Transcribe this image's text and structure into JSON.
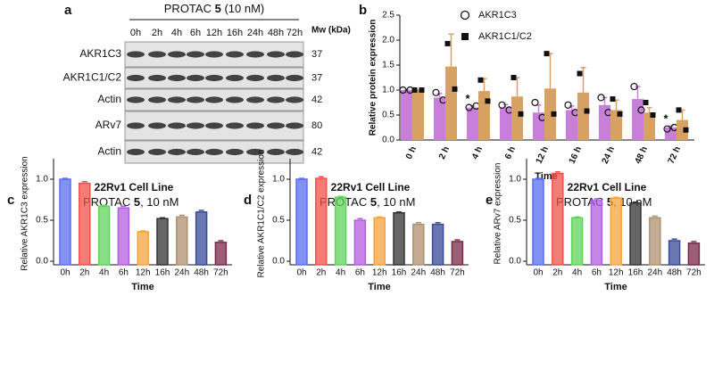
{
  "chart_data": [
    {
      "type": "blot",
      "panel": "a",
      "heading_parts": [
        "PROTAC ",
        "5",
        " (10 nM)"
      ],
      "columns": [
        "0h",
        "2h",
        "4h",
        "6h",
        "12h",
        "16h",
        "24h",
        "48h",
        "72h"
      ],
      "mw_title": "Mw (kDa)",
      "rows": [
        {
          "label": "AKR1C3",
          "mw": 37
        },
        {
          "label": "AKR1C1/C2",
          "mw": 37
        },
        {
          "label": "Actin",
          "mw": 42
        },
        {
          "label": "ARv7",
          "mw": 80
        },
        {
          "label": "Actin",
          "mw": 42
        }
      ]
    },
    {
      "type": "grouped-bar",
      "panel": "b",
      "categories": [
        "0 h",
        "2 h",
        "4 h",
        "6 h",
        "12 h",
        "16 h",
        "24 h",
        "48 h",
        "72 h"
      ],
      "ylabel": "Relative protein expression",
      "xlabel": "Time",
      "ylim": [
        0,
        2.5
      ],
      "yticks": [
        {
          "value": 0,
          "label": "0.0"
        },
        0.5,
        {
          "value": 1,
          "label": "1.0"
        },
        1.5,
        {
          "value": 2,
          "label": "2.0"
        },
        2.5
      ],
      "legend": "upper right",
      "series": [
        {
          "name": "AKR1C3",
          "color": "#c77fd9",
          "marker": "circle",
          "values": [
            1.0,
            0.85,
            0.65,
            0.65,
            0.55,
            0.6,
            0.7,
            0.82,
            0.25
          ],
          "errors": [
            0.0,
            0.08,
            0.03,
            0.06,
            0.15,
            0.08,
            0.15,
            0.25,
            0.03
          ],
          "points": [
            [
              1.0,
              1.0
            ],
            [
              0.95,
              0.8
            ],
            [
              0.65,
              0.68
            ],
            [
              0.7,
              0.6
            ],
            [
              0.75,
              0.45
            ],
            [
              0.7,
              0.55
            ],
            [
              0.85,
              0.55
            ],
            [
              1.07,
              0.6
            ],
            [
              0.22,
              0.25
            ]
          ],
          "significance": [
            null,
            null,
            "*",
            null,
            null,
            null,
            null,
            null,
            "*"
          ]
        },
        {
          "name": "AKR1C1/C2",
          "color": "#d6a163",
          "marker": "square",
          "values": [
            1.0,
            1.47,
            0.98,
            0.87,
            1.03,
            0.95,
            0.6,
            0.55,
            0.4
          ],
          "errors": [
            0.0,
            0.65,
            0.25,
            0.38,
            0.7,
            0.5,
            0.2,
            0.1,
            0.2
          ],
          "points": [
            [
              1.0,
              1.0
            ],
            [
              1.93,
              1.02
            ],
            [
              1.2,
              0.78
            ],
            [
              1.25,
              0.52
            ],
            [
              1.73,
              0.52
            ],
            [
              1.33,
              0.58
            ],
            [
              0.82,
              0.52
            ],
            [
              0.75,
              0.5
            ],
            [
              0.6,
              0.2
            ]
          ]
        }
      ]
    },
    {
      "type": "bar",
      "panel": "c",
      "title": "22Rv1 Cell Line",
      "subtitle_parts": [
        "PROTAC ",
        "5",
        ", 10 nM"
      ],
      "ylabel": "Relative AKR1C3 expression",
      "xlabel": "Time",
      "categories": [
        "0h",
        "2h",
        "4h",
        "6h",
        "12h",
        "16h",
        "24h",
        "48h",
        "72h"
      ],
      "values": [
        1.0,
        0.95,
        0.67,
        0.65,
        0.36,
        0.52,
        0.54,
        0.6,
        0.23
      ],
      "errors": [
        0.01,
        0.02,
        0.01,
        0.02,
        0.01,
        0.01,
        0.02,
        0.02,
        0.02
      ],
      "colors": [
        "#5b6cf0",
        "#f0504a",
        "#5fd35a",
        "#b25ee0",
        "#f5a43c",
        "#333333",
        "#b09070",
        "#3a4a9a",
        "#7a2a4a"
      ],
      "ylim": [
        0,
        1.25
      ],
      "yticks": [
        {
          "value": 0,
          "label": "0.0"
        },
        0.5,
        {
          "value": 1,
          "label": "1.0"
        }
      ]
    },
    {
      "type": "bar",
      "panel": "d",
      "title": "22Rv1 Cell Line",
      "subtitle_parts": [
        "PROTAC ",
        "5",
        ", 10 nM"
      ],
      "ylabel": "Relative AKR1C1/C2 expression",
      "xlabel": "Time",
      "categories": [
        "0h",
        "2h",
        "4h",
        "6h",
        "12h",
        "16h",
        "24h",
        "48h",
        "72h"
      ],
      "values": [
        1.0,
        1.01,
        0.78,
        0.5,
        0.53,
        0.59,
        0.45,
        0.45,
        0.24
      ],
      "errors": [
        0.01,
        0.02,
        0.01,
        0.02,
        0.01,
        0.01,
        0.02,
        0.02,
        0.02
      ],
      "colors": [
        "#5b6cf0",
        "#f0504a",
        "#5fd35a",
        "#b25ee0",
        "#f5a43c",
        "#333333",
        "#b09070",
        "#3a4a9a",
        "#7a2a4a"
      ],
      "ylim": [
        0,
        1.25
      ],
      "yticks": [
        {
          "value": 0,
          "label": "0.0"
        },
        0.5,
        {
          "value": 1,
          "label": "1.0"
        }
      ]
    },
    {
      "type": "bar",
      "panel": "e",
      "title": "22Rv1 Cell Line",
      "subtitle_parts": [
        "PROTAC ",
        "5",
        ", 10 nM"
      ],
      "ylabel": "Relative ARv7 expression",
      "xlabel": "Time",
      "categories": [
        "0h",
        "2h",
        "4h",
        "6h",
        "12h",
        "16h",
        "24h",
        "48h",
        "72h"
      ],
      "values": [
        1.0,
        1.07,
        0.53,
        0.74,
        0.77,
        0.71,
        0.53,
        0.25,
        0.22
      ],
      "errors": [
        0.01,
        0.02,
        0.01,
        0.02,
        0.01,
        0.01,
        0.02,
        0.02,
        0.02
      ],
      "colors": [
        "#5b6cf0",
        "#f0504a",
        "#5fd35a",
        "#b25ee0",
        "#f5a43c",
        "#333333",
        "#b09070",
        "#3a4a9a",
        "#7a2a4a"
      ],
      "ylim": [
        0,
        1.25
      ],
      "yticks": [
        {
          "value": 0,
          "label": "0.0"
        },
        0.5,
        {
          "value": 1,
          "label": "1.0"
        }
      ]
    }
  ]
}
